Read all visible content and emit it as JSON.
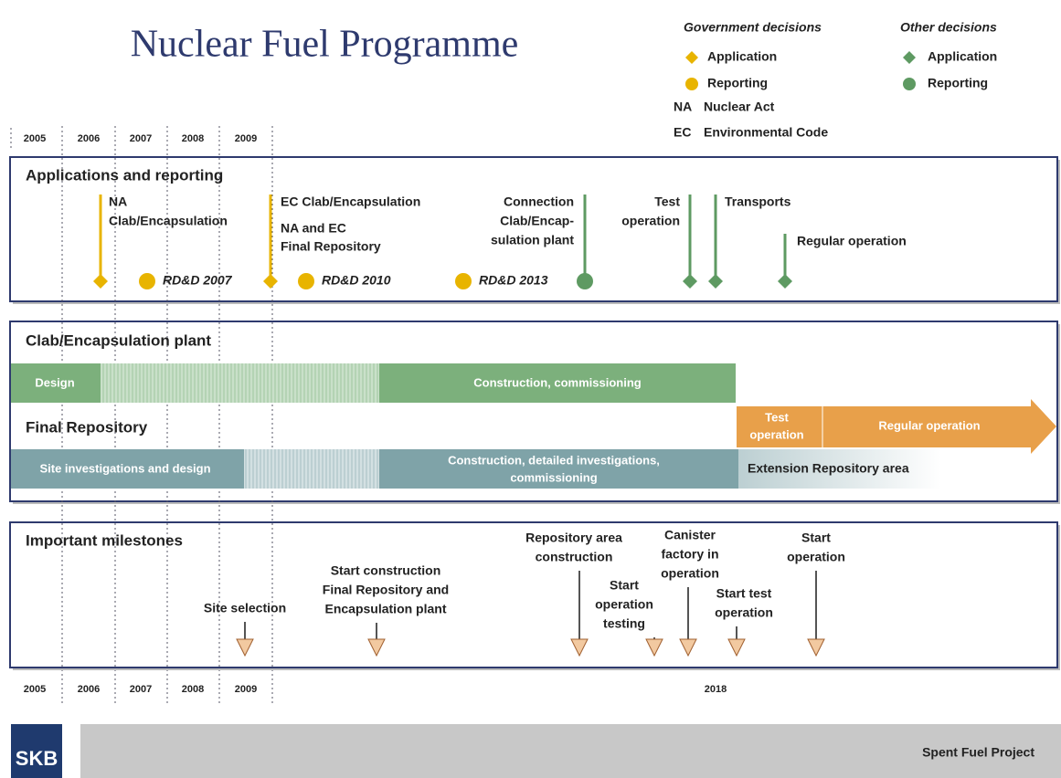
{
  "title": "Nuclear Fuel Programme",
  "legend": {
    "government": {
      "heading": "Government decisions",
      "application": "Application",
      "reporting": "Reporting"
    },
    "other": {
      "heading": "Other decisions",
      "application": "Application",
      "reporting": "Reporting"
    },
    "abbreviations": [
      [
        "NA",
        "Nuclear Act"
      ],
      [
        "EC",
        "Environmental Code"
      ]
    ]
  },
  "years_top": [
    "2005",
    "2006",
    "2007",
    "2008",
    "2009"
  ],
  "years_bottom": [
    "2005",
    "2006",
    "2007",
    "2008",
    "2009",
    "2018"
  ],
  "applications": {
    "heading": "Applications and reporting",
    "events": [
      [
        "NA",
        "Clab/Encapsulation"
      ],
      [
        "RD&D 2007"
      ],
      [
        "EC Clab/Encapsulation",
        "NA and EC",
        "Final Repository"
      ],
      [
        "RD&D 2010"
      ],
      [
        "RD&D 2013"
      ],
      [
        "Connection",
        "Clab/Encap-",
        "sulation plant"
      ],
      [
        "Test",
        "operation"
      ],
      [
        "Transports"
      ],
      [
        "Regular operation"
      ]
    ]
  },
  "plant": {
    "heading": "Clab/Encapsulation plant",
    "phases": [
      "Design",
      "Construction, commissioning"
    ]
  },
  "repository": {
    "heading": "Final Repository",
    "phases": [
      [
        "Site investigations and design"
      ],
      [
        "Construction, detailed investigations,",
        "commissioning"
      ],
      [
        "Extension Repository area"
      ]
    ],
    "operation": [
      [
        "Test",
        "operation"
      ],
      [
        "Regular operation"
      ]
    ]
  },
  "milestones": {
    "heading": "Important milestones",
    "items": [
      [
        "Site selection"
      ],
      [
        "Start construction",
        "Final Repository and",
        "Encapsulation plant"
      ],
      [
        "Repository area",
        "construction"
      ],
      [
        "Start",
        "operation",
        "testing"
      ],
      [
        "Canister",
        "factory in",
        "operation"
      ],
      [
        "Start test",
        "operation"
      ],
      [
        "Start",
        "operation"
      ]
    ]
  },
  "footer": {
    "logo": "SKB",
    "project": "Spent Fuel Project"
  }
}
